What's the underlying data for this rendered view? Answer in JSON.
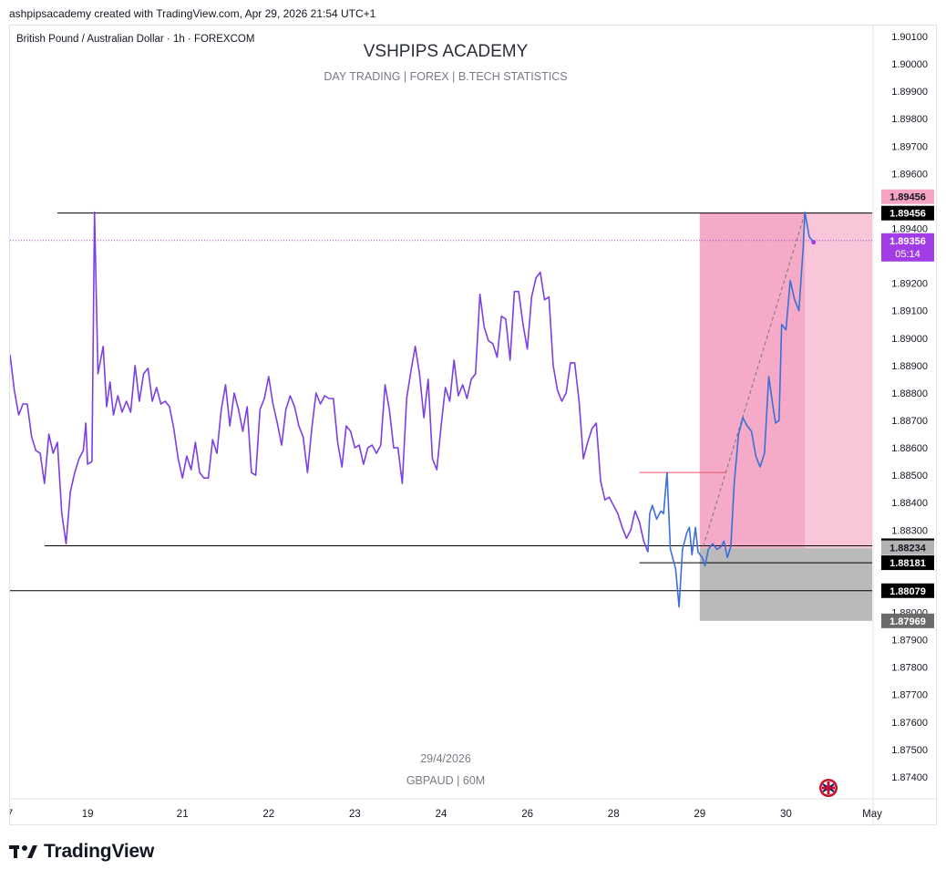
{
  "caption": "ashpipsacademy created with TradingView.com, Apr 29, 2026 21:54 UTC+1",
  "symbol_description": "British Pound / Australian Dollar · 1h · FOREXCOM",
  "footer_brand": "TradingView",
  "branding_icon": "tradingview-logo-icon",
  "flag_icon": "uk-flag-icon",
  "colors": {
    "line_purple": "#7b3fe4",
    "line_blue": "#3b6fd8",
    "target_zone": "#f4a6c4",
    "target_zone_light": "#f8c6d8",
    "stop_zone": "#b2b2b2",
    "last_price": "#a23ce6",
    "level_label_bg": "#000000"
  },
  "chart_data": {
    "type": "line",
    "title": "VSHPIPS ACADEMY",
    "subtitle": "DAY TRADING  |  FOREX  |  B.TECH STATISTICS",
    "watermark_lines": [
      "29/4/2026",
      "GBPAUD | 60M"
    ],
    "ylim": [
      1.8732,
      1.9014
    ],
    "y_ticks": [
      "1.90100",
      "1.90000",
      "1.89900",
      "1.89800",
      "1.89700",
      "1.89600",
      "1.89400",
      "1.89200",
      "1.89100",
      "1.89000",
      "1.88900",
      "1.88800",
      "1.88700",
      "1.88600",
      "1.88500",
      "1.88400",
      "1.88300",
      "1.88000",
      "1.87900",
      "1.87800",
      "1.87700",
      "1.87600",
      "1.87500",
      "1.87400"
    ],
    "x_axis": {
      "range": [
        0,
        10
      ],
      "ticks": [
        {
          "label": "7",
          "x": 0.0
        },
        {
          "label": "19",
          "x": 0.9
        },
        {
          "label": "21",
          "x": 2.0
        },
        {
          "label": "22",
          "x": 3.0
        },
        {
          "label": "23",
          "x": 4.0
        },
        {
          "label": "24",
          "x": 5.0
        },
        {
          "label": "26",
          "x": 6.0
        },
        {
          "label": "28",
          "x": 7.0
        },
        {
          "label": "29",
          "x": 8.0
        },
        {
          "label": "30",
          "x": 9.0
        },
        {
          "label": "May",
          "x": 10.0
        }
      ]
    },
    "series": [
      {
        "points": [
          [
            0.0,
            1.8894
          ],
          [
            0.05,
            1.8881
          ],
          [
            0.1,
            1.8872
          ],
          [
            0.15,
            1.8876
          ],
          [
            0.2,
            1.8876
          ],
          [
            0.25,
            1.8864
          ],
          [
            0.3,
            1.8859
          ],
          [
            0.35,
            1.8858
          ],
          [
            0.4,
            1.8847
          ],
          [
            0.45,
            1.8865
          ],
          [
            0.5,
            1.8858
          ],
          [
            0.55,
            1.8862
          ],
          [
            0.6,
            1.8836
          ],
          [
            0.65,
            1.8825
          ],
          [
            0.7,
            1.8844
          ],
          [
            0.75,
            1.8851
          ],
          [
            0.8,
            1.8856
          ],
          [
            0.85,
            1.8859
          ],
          [
            0.88,
            1.8869
          ],
          [
            0.9,
            1.8854
          ],
          [
            0.95,
            1.8855
          ],
          [
            0.98,
            1.8946
          ],
          [
            1.02,
            1.8887
          ],
          [
            1.08,
            1.8897
          ],
          [
            1.12,
            1.8875
          ],
          [
            1.16,
            1.8884
          ],
          [
            1.2,
            1.8872
          ],
          [
            1.25,
            1.8879
          ],
          [
            1.3,
            1.8873
          ],
          [
            1.35,
            1.8877
          ],
          [
            1.4,
            1.8873
          ],
          [
            1.45,
            1.889
          ],
          [
            1.5,
            1.8877
          ],
          [
            1.55,
            1.8887
          ],
          [
            1.6,
            1.8889
          ],
          [
            1.65,
            1.8877
          ],
          [
            1.7,
            1.8882
          ],
          [
            1.75,
            1.8876
          ],
          [
            1.8,
            1.8877
          ],
          [
            1.85,
            1.8875
          ],
          [
            1.9,
            1.8867
          ],
          [
            1.95,
            1.8856
          ],
          [
            2.0,
            1.8849
          ],
          [
            2.05,
            1.8857
          ],
          [
            2.1,
            1.8852
          ],
          [
            2.15,
            1.8862
          ],
          [
            2.2,
            1.8851
          ],
          [
            2.25,
            1.8849
          ],
          [
            2.3,
            1.8849
          ],
          [
            2.35,
            1.8863
          ],
          [
            2.4,
            1.8858
          ],
          [
            2.45,
            1.8874
          ],
          [
            2.5,
            1.8883
          ],
          [
            2.55,
            1.8868
          ],
          [
            2.6,
            1.888
          ],
          [
            2.65,
            1.8874
          ],
          [
            2.7,
            1.8866
          ],
          [
            2.75,
            1.8875
          ],
          [
            2.8,
            1.8851
          ],
          [
            2.85,
            1.885
          ],
          [
            2.9,
            1.8874
          ],
          [
            2.95,
            1.8878
          ],
          [
            3.0,
            1.8886
          ],
          [
            3.05,
            1.8876
          ],
          [
            3.1,
            1.8869
          ],
          [
            3.15,
            1.8861
          ],
          [
            3.2,
            1.8874
          ],
          [
            3.25,
            1.8879
          ],
          [
            3.3,
            1.8875
          ],
          [
            3.35,
            1.8868
          ],
          [
            3.4,
            1.8864
          ],
          [
            3.45,
            1.8851
          ],
          [
            3.5,
            1.8867
          ],
          [
            3.55,
            1.888
          ],
          [
            3.6,
            1.8876
          ],
          [
            3.65,
            1.8879
          ],
          [
            3.7,
            1.8878
          ],
          [
            3.75,
            1.8878
          ],
          [
            3.8,
            1.8862
          ],
          [
            3.85,
            1.8853
          ],
          [
            3.9,
            1.8868
          ],
          [
            3.95,
            1.8866
          ],
          [
            4.0,
            1.886
          ],
          [
            4.05,
            1.8861
          ],
          [
            4.1,
            1.8854
          ],
          [
            4.15,
            1.886
          ],
          [
            4.2,
            1.8861
          ],
          [
            4.25,
            1.8858
          ],
          [
            4.3,
            1.8861
          ],
          [
            4.35,
            1.8883
          ],
          [
            4.4,
            1.8874
          ],
          [
            4.45,
            1.886
          ],
          [
            4.5,
            1.886
          ],
          [
            4.55,
            1.8847
          ],
          [
            4.6,
            1.8878
          ],
          [
            4.65,
            1.8888
          ],
          [
            4.7,
            1.8897
          ],
          [
            4.75,
            1.8887
          ],
          [
            4.8,
            1.8871
          ],
          [
            4.85,
            1.8885
          ],
          [
            4.9,
            1.8856
          ],
          [
            4.95,
            1.8852
          ],
          [
            5.0,
            1.8868
          ],
          [
            5.05,
            1.8882
          ],
          [
            5.1,
            1.8877
          ],
          [
            5.15,
            1.8892
          ],
          [
            5.2,
            1.8879
          ],
          [
            5.25,
            1.8883
          ],
          [
            5.3,
            1.8878
          ],
          [
            5.35,
            1.8885
          ],
          [
            5.4,
            1.8887
          ],
          [
            5.45,
            1.8916
          ],
          [
            5.5,
            1.8904
          ],
          [
            5.55,
            1.8899
          ],
          [
            5.6,
            1.8898
          ],
          [
            5.65,
            1.8893
          ],
          [
            5.7,
            1.8908
          ],
          [
            5.75,
            1.8907
          ],
          [
            5.8,
            1.8892
          ],
          [
            5.85,
            1.8917
          ],
          [
            5.9,
            1.8917
          ],
          [
            5.95,
            1.8905
          ],
          [
            6.0,
            1.8896
          ],
          [
            6.05,
            1.8915
          ],
          [
            6.1,
            1.8922
          ],
          [
            6.15,
            1.8924
          ],
          [
            6.2,
            1.8914
          ],
          [
            6.25,
            1.8915
          ],
          [
            6.3,
            1.889
          ],
          [
            6.35,
            1.8881
          ],
          [
            6.4,
            1.8877
          ],
          [
            6.45,
            1.888
          ],
          [
            6.5,
            1.8891
          ],
          [
            6.55,
            1.8891
          ],
          [
            6.6,
            1.8877
          ],
          [
            6.65,
            1.8856
          ],
          [
            6.7,
            1.8862
          ],
          [
            6.75,
            1.8867
          ],
          [
            6.8,
            1.8869
          ],
          [
            6.85,
            1.8848
          ],
          [
            6.9,
            1.8841
          ],
          [
            6.95,
            1.8842
          ],
          [
            7.0,
            1.8839
          ],
          [
            7.05,
            1.8836
          ],
          [
            7.1,
            1.8831
          ],
          [
            7.15,
            1.8827
          ],
          [
            7.2,
            1.883
          ],
          [
            7.25,
            1.8837
          ],
          [
            7.3,
            1.8833
          ],
          [
            7.35,
            1.8826
          ],
          [
            7.4,
            1.8822
          ]
        ]
      },
      {
        "points": [
          [
            7.4,
            1.8822
          ],
          [
            7.42,
            1.8836
          ],
          [
            7.45,
            1.8839
          ],
          [
            7.5,
            1.8834
          ],
          [
            7.55,
            1.8837
          ],
          [
            7.58,
            1.8836
          ],
          [
            7.62,
            1.8851
          ],
          [
            7.66,
            1.8823
          ],
          [
            7.72,
            1.8816
          ],
          [
            7.76,
            1.8802
          ],
          [
            7.8,
            1.8823
          ],
          [
            7.85,
            1.8829
          ],
          [
            7.88,
            1.8831
          ],
          [
            7.91,
            1.8821
          ],
          [
            7.95,
            1.8831
          ],
          [
            7.98,
            1.8822
          ],
          [
            8.03,
            1.882
          ],
          [
            8.06,
            1.8817
          ],
          [
            8.1,
            1.8823
          ],
          [
            8.15,
            1.8825
          ],
          [
            8.2,
            1.8823
          ],
          [
            8.25,
            1.8824
          ],
          [
            8.28,
            1.8826
          ],
          [
            8.32,
            1.882
          ],
          [
            8.36,
            1.8824
          ],
          [
            8.4,
            1.8847
          ],
          [
            8.45,
            1.8865
          ],
          [
            8.5,
            1.8871
          ],
          [
            8.55,
            1.8868
          ],
          [
            8.6,
            1.8866
          ],
          [
            8.65,
            1.8857
          ],
          [
            8.7,
            1.8853
          ],
          [
            8.75,
            1.8858
          ],
          [
            8.8,
            1.8886
          ],
          [
            8.85,
            1.8875
          ],
          [
            8.88,
            1.8869
          ],
          [
            8.92,
            1.887
          ],
          [
            8.95,
            1.8905
          ],
          [
            9.0,
            1.8903
          ],
          [
            9.05,
            1.8921
          ],
          [
            9.1,
            1.8914
          ],
          [
            9.15,
            1.891
          ],
          [
            9.2,
            1.8933
          ],
          [
            9.22,
            1.8946
          ],
          [
            9.27,
            1.8937
          ],
          [
            9.32,
            1.8935
          ]
        ]
      }
    ],
    "levels": [
      {
        "price": 1.89456,
        "label": "1.89456",
        "style": "black",
        "x_range": [
          0.55,
          10.0
        ]
      },
      {
        "price": 1.88243,
        "label": "1.88243",
        "style": "black",
        "x_range": [
          0.4,
          10.0
        ]
      },
      {
        "price": 1.88181,
        "label": "1.88181",
        "style": "black",
        "x_range": [
          7.3,
          10.0
        ]
      },
      {
        "price": 1.88079,
        "label": "1.88079",
        "style": "black",
        "x_range": [
          0.0,
          10.0
        ]
      }
    ],
    "price_labels": [
      {
        "price": 1.89456,
        "label": "1.89456",
        "style": "pink",
        "offset": -6
      },
      {
        "price": 1.88234,
        "label": "1.88234",
        "style": "gray",
        "offset": 0
      },
      {
        "price": 1.87969,
        "label": "1.87969",
        "style": "darkgray",
        "offset": 0
      }
    ],
    "last_price": {
      "price": 1.89356,
      "label": "1.89356",
      "countdown": "05:14"
    },
    "position": {
      "type": "long",
      "x_start": 8.0,
      "x_end": 10.0,
      "x_filled_end": 9.22,
      "entry": 1.88234,
      "target": 1.89456,
      "stop": 1.87969
    },
    "red_line": {
      "price": 1.8851,
      "x_range": [
        7.3,
        8.3
      ]
    },
    "projection": {
      "from": [
        8.04,
        1.8824
      ],
      "to": [
        9.22,
        1.89456
      ]
    }
  }
}
